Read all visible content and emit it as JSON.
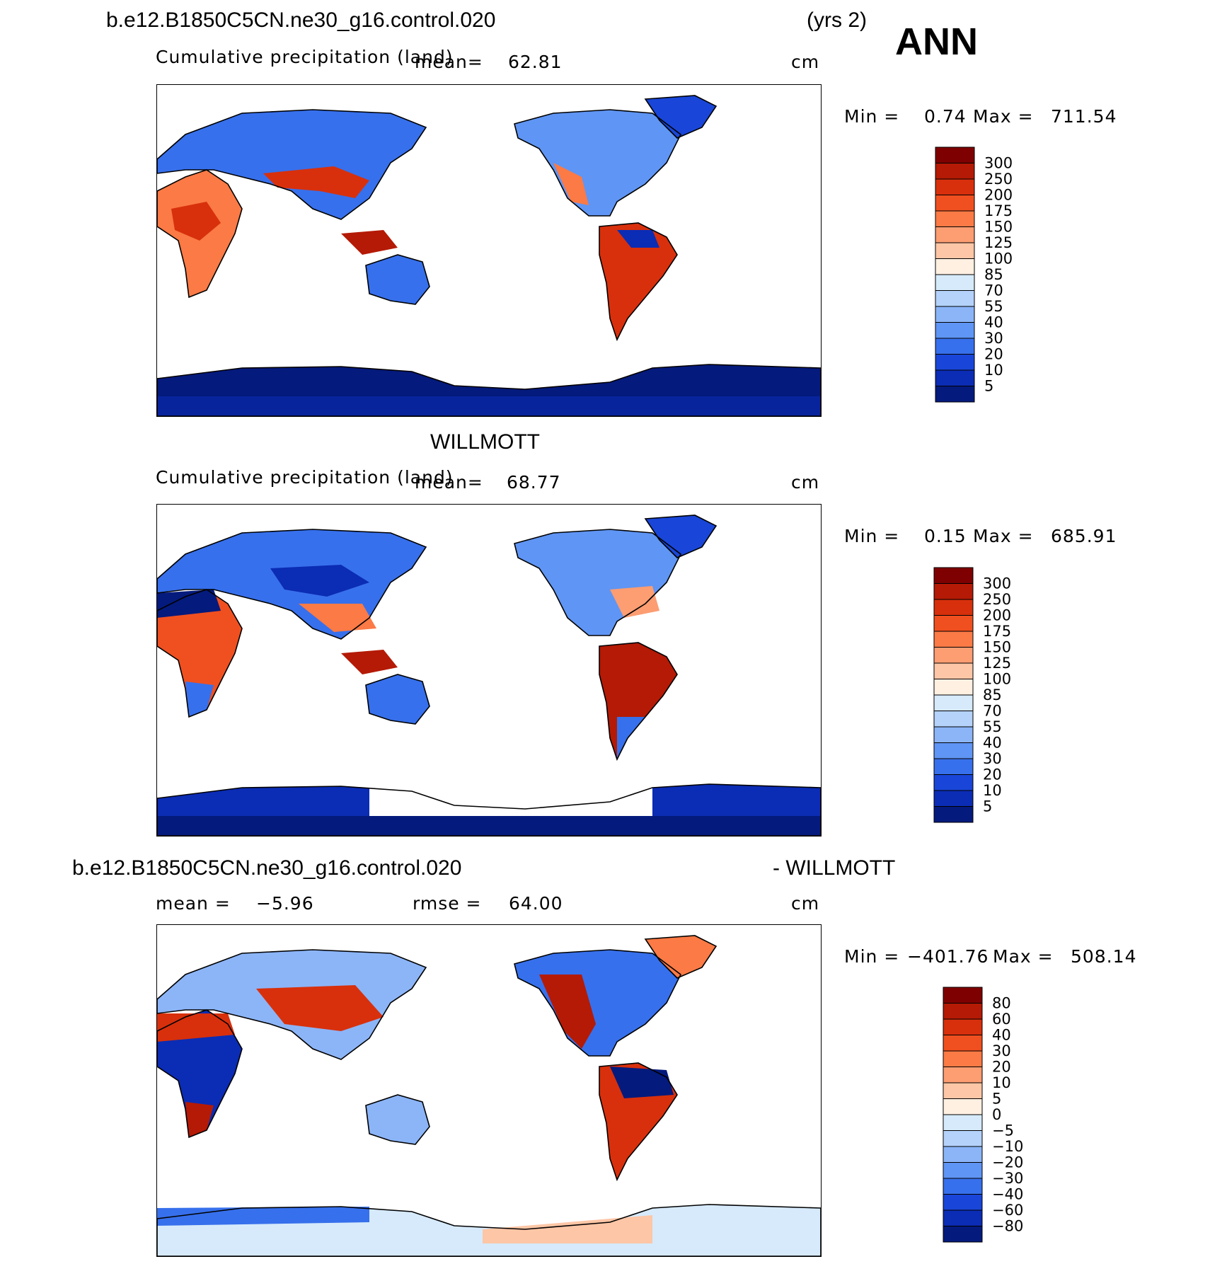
{
  "season": "ANN",
  "panels": [
    {
      "id": "model",
      "case_title": "b.e12.B1850C5CN.ne30_g16.control.020",
      "years": "(yrs 2)",
      "subtitle": "Cumulative precipitation (land)",
      "mean_label": "mean=",
      "mean_value": "62.81",
      "units": "cm",
      "min_label": "Min =",
      "min_value": "0.74",
      "max_label": "Max =",
      "max_value": "711.54",
      "scale": "precip"
    },
    {
      "id": "obs",
      "case_title": "WILLMOTT",
      "subtitle": "Cumulative precipitation (land)",
      "mean_label": "mean=",
      "mean_value": "68.77",
      "units": "cm",
      "min_label": "Min =",
      "min_value": "0.15",
      "max_label": "Max =",
      "max_value": "685.91",
      "scale": "precip"
    },
    {
      "id": "diff",
      "case_title": "b.e12.B1850C5CN.ne30_g16.control.020",
      "case_suffix": "- WILLMOTT",
      "mean_label": "mean =",
      "mean_value": "−5.96",
      "rmse_label": "rmse =",
      "rmse_value": "64.00",
      "units": "cm",
      "min_label": "Min =",
      "min_value": "−401.76",
      "max_label": "Max =",
      "max_value": "508.14",
      "scale": "diff"
    }
  ],
  "colorbars": {
    "precip": {
      "labels": [
        "300",
        "250",
        "200",
        "175",
        "150",
        "125",
        "100",
        "85",
        "70",
        "55",
        "40",
        "30",
        "20",
        "10",
        "5"
      ],
      "colors": [
        "#7f0000",
        "#b41a05",
        "#d8300c",
        "#f05020",
        "#fb7a45",
        "#fc9d72",
        "#fdc6a6",
        "#fff0e2",
        "#d6eafb",
        "#b4d2fa",
        "#8cb5f8",
        "#5f95f4",
        "#3770ec",
        "#1946d8",
        "#0b2cb4",
        "#041a7c"
      ]
    },
    "diff": {
      "labels": [
        "80",
        "60",
        "40",
        "30",
        "20",
        "10",
        "5",
        "0",
        "−5",
        "−10",
        "−20",
        "−30",
        "−40",
        "−60",
        "−80"
      ],
      "colors": [
        "#7f0000",
        "#b41a05",
        "#d8300c",
        "#f05020",
        "#fb7a45",
        "#fc9d72",
        "#fdc6a6",
        "#fff0e2",
        "#d6eafb",
        "#b4d2fa",
        "#8cb5f8",
        "#5f95f4",
        "#3770ec",
        "#1946d8",
        "#0b2cb4",
        "#041a7c"
      ]
    }
  },
  "chart_data": [
    {
      "type": "heatmap",
      "title": "b.e12.B1850C5CN.ne30_g16.control.020 (yrs 2) Cumulative precipitation (land)",
      "units": "cm",
      "mean": 62.81,
      "min": 0.74,
      "max": 711.54,
      "contour_levels": [
        5,
        10,
        20,
        30,
        40,
        55,
        70,
        85,
        100,
        125,
        150,
        175,
        200,
        250,
        300
      ]
    },
    {
      "type": "heatmap",
      "title": "WILLMOTT Cumulative precipitation (land)",
      "units": "cm",
      "mean": 68.77,
      "min": 0.15,
      "max": 685.91,
      "contour_levels": [
        5,
        10,
        20,
        30,
        40,
        55,
        70,
        85,
        100,
        125,
        150,
        175,
        200,
        250,
        300
      ]
    },
    {
      "type": "heatmap",
      "title": "b.e12.B1850C5CN.ne30_g16.control.020 - WILLMOTT",
      "units": "cm",
      "mean": -5.96,
      "rmse": 64.0,
      "min": -401.76,
      "max": 508.14,
      "contour_levels": [
        -80,
        -60,
        -40,
        -30,
        -20,
        -10,
        -5,
        0,
        5,
        10,
        20,
        30,
        40,
        60,
        80
      ]
    }
  ]
}
